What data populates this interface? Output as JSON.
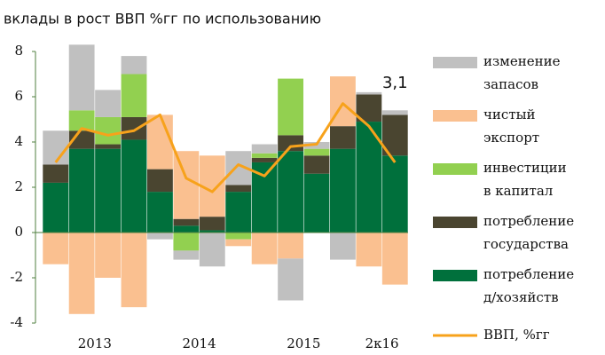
{
  "chart_data": {
    "type": "stacked_bar_line",
    "title": "вклады в рост ВВП %гг по использованию",
    "categories": [
      null,
      "2013",
      null,
      null,
      null,
      "2014",
      null,
      null,
      null,
      "2015",
      null,
      null,
      "2к16",
      null
    ],
    "series": [
      {
        "name": "потребление д/хозяйств",
        "color": "#00703c",
        "values": [
          2.2,
          3.7,
          3.7,
          4.1,
          1.8,
          0.3,
          0.1,
          1.8,
          3.1,
          3.6,
          2.6,
          3.7,
          4.9,
          3.4
        ]
      },
      {
        "name": "потребление государства",
        "color": "#4a4530",
        "values": [
          0.8,
          0.8,
          0.2,
          1.0,
          1.0,
          0.3,
          0.6,
          0.3,
          0.2,
          0.7,
          0.8,
          1.0,
          1.2,
          1.8
        ]
      },
      {
        "name": "инвестиции в капитал",
        "color": "#92d050",
        "values": [
          0,
          0.9,
          1.2,
          1.9,
          0,
          -0.8,
          0,
          -0.3,
          0.2,
          2.5,
          0.3,
          0,
          0,
          0
        ]
      },
      {
        "name": "чистый экспорт",
        "color": "#fac090",
        "values": [
          -1.4,
          -3.6,
          -2.0,
          -3.3,
          2.4,
          3.0,
          2.7,
          -0.3,
          -1.4,
          -1.15,
          0,
          2.2,
          -1.5,
          -2.3
        ]
      },
      {
        "name": "изменение запасов",
        "color": "#c0c0c0",
        "values": [
          1.5,
          2.9,
          1.2,
          0.8,
          -0.3,
          -0.4,
          -1.5,
          1.5,
          0.4,
          -1.85,
          0.3,
          -1.2,
          0.1,
          0.2
        ]
      }
    ],
    "line": {
      "name": "ВВП, %гг",
      "color": "#f7a21b",
      "values": [
        3.1,
        4.6,
        4.3,
        4.5,
        5.2,
        2.4,
        1.8,
        3.0,
        2.5,
        3.8,
        3.9,
        5.7,
        4.7,
        3.1
      ]
    },
    "annotation": "3,1",
    "ylim": [
      -4,
      8
    ],
    "yticks": [
      -4,
      -2,
      0,
      2,
      4,
      6,
      8
    ]
  }
}
